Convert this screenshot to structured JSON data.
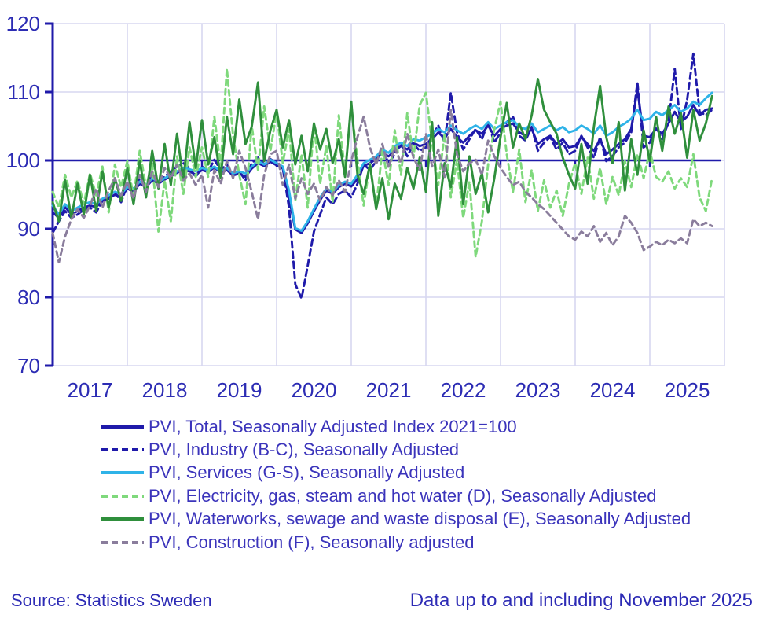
{
  "chart_data": {
    "type": "line",
    "title": "",
    "x_unit": "month",
    "x_start": "2017-01",
    "x_end": "2025-11",
    "x_tick_labels": [
      "2017",
      "2018",
      "2019",
      "2020",
      "2021",
      "2022",
      "2023",
      "2024",
      "2025"
    ],
    "ylim": [
      70,
      120
    ],
    "y_ticks": [
      70,
      80,
      90,
      100,
      110,
      120
    ],
    "grid": true,
    "baseline_value": 100,
    "colors": {
      "axis": "#1f1aaa",
      "gridline": "#d7d7f0",
      "tick_label": "#2c2cb4"
    },
    "series": [
      {
        "id": "pvi-total",
        "name": "PVI, Total, Seasonally Adjusted Index 2021=100",
        "color": "#1f1aaa",
        "dash": "solid",
        "values": [
          92.4,
          91.6,
          93.2,
          92.1,
          92.6,
          93.1,
          93.4,
          93.2,
          94.1,
          94.4,
          95.0,
          94.6,
          95.9,
          95.4,
          96.6,
          96.1,
          97.1,
          96.6,
          97.2,
          97.7,
          98.2,
          98.6,
          98.4,
          97.9,
          98.6,
          98.3,
          99.0,
          98.2,
          98.6,
          97.8,
          98.1,
          97.6,
          98.8,
          99.6,
          99.2,
          99.8,
          99.3,
          98.8,
          94.5,
          89.9,
          89.4,
          90.8,
          92.6,
          94.2,
          95.6,
          95.1,
          96.1,
          96.6,
          96.2,
          97.3,
          99.2,
          99.6,
          100.2,
          101.1,
          100.6,
          101.4,
          102.1,
          101.6,
          102.6,
          102.1,
          102.4,
          103.1,
          104.1,
          103.2,
          104.6,
          103.4,
          102.6,
          103.6,
          104.4,
          103.9,
          105.1,
          103.6,
          104.6,
          105.1,
          105.4,
          104.1,
          103.6,
          104.6,
          102.4,
          103.1,
          103.6,
          102.4,
          103.1,
          101.9,
          102.1,
          103.4,
          102.4,
          101.4,
          103.1,
          100.9,
          101.6,
          102.4,
          103.1,
          104.6,
          110.4,
          103.6,
          103.4,
          104.6,
          103.9,
          105.4,
          107.1,
          105.6,
          106.4,
          108.1,
          106.6,
          107.4,
          107.6
        ]
      },
      {
        "id": "pvi-industry",
        "name": "PVI, Industry (B-C), Seasonally Adjusted",
        "color": "#1f1aaa",
        "dash": "8 5",
        "values": [
          89.4,
          91.1,
          92.6,
          91.6,
          92.1,
          92.8,
          93.1,
          92.4,
          94.1,
          94.6,
          95.4,
          93.9,
          96.4,
          95.1,
          97.4,
          96.4,
          98.1,
          96.9,
          97.6,
          98.4,
          99.1,
          99.6,
          98.9,
          97.6,
          99.1,
          98.4,
          100.1,
          98.6,
          99.4,
          97.9,
          98.4,
          97.1,
          99.6,
          100.4,
          99.4,
          100.2,
          99.6,
          98.9,
          93.1,
          81.9,
          79.8,
          84.6,
          89.6,
          92.1,
          94.6,
          93.6,
          95.1,
          95.6,
          94.6,
          96.6,
          99.4,
          98.6,
          99.9,
          101.6,
          99.6,
          100.9,
          102.6,
          100.6,
          102.4,
          101.4,
          101.9,
          103.6,
          105.1,
          102.6,
          109.9,
          104.1,
          101.6,
          103.1,
          104.6,
          103.1,
          105.6,
          102.6,
          104.1,
          105.6,
          106.4,
          103.6,
          102.9,
          104.9,
          101.4,
          102.6,
          103.4,
          101.6,
          102.6,
          100.9,
          101.4,
          103.6,
          101.9,
          100.4,
          103.4,
          99.9,
          100.6,
          101.9,
          102.6,
          104.1,
          111.4,
          101.9,
          102.6,
          104.9,
          103.1,
          105.6,
          113.4,
          104.6,
          108.9,
          115.6,
          107.1,
          106.6,
          107.4
        ]
      },
      {
        "id": "pvi-services",
        "name": "PVI, Services (G-S), Seasonally Adjusted",
        "color": "#2fb3e8",
        "dash": "solid",
        "values": [
          93.4,
          92.1,
          93.6,
          92.6,
          93.1,
          93.6,
          93.9,
          93.6,
          94.4,
          94.9,
          95.4,
          95.1,
          96.1,
          95.9,
          96.9,
          96.4,
          97.4,
          96.9,
          97.4,
          97.9,
          98.4,
          98.9,
          98.7,
          98.4,
          98.9,
          98.6,
          99.1,
          98.4,
          98.9,
          98.1,
          98.4,
          98.1,
          99.1,
          99.9,
          99.4,
          100.1,
          99.6,
          99.1,
          95.6,
          90.1,
          89.7,
          91.1,
          92.9,
          94.6,
          95.9,
          95.4,
          96.4,
          96.9,
          96.6,
          97.9,
          99.6,
          100.1,
          100.6,
          101.6,
          101.1,
          102.1,
          102.6,
          102.1,
          103.1,
          102.9,
          103.4,
          103.9,
          104.6,
          104.1,
          105.1,
          104.4,
          103.9,
          104.6,
          105.1,
          104.6,
          105.6,
          104.6,
          105.1,
          105.6,
          105.9,
          104.9,
          104.6,
          105.4,
          104.1,
          104.6,
          105.1,
          104.4,
          104.9,
          104.1,
          104.4,
          105.1,
          104.6,
          103.9,
          105.1,
          103.6,
          104.1,
          104.9,
          105.4,
          106.1,
          107.4,
          105.9,
          106.1,
          107.1,
          106.6,
          107.4,
          108.1,
          107.1,
          107.6,
          108.6,
          108.1,
          109.1,
          109.9
        ]
      },
      {
        "id": "pvi-electricity",
        "name": "PVI, Electricity, gas, steam and hot water (D), Seasonally Adjusted",
        "color": "#7fd97c",
        "dash": "7 5",
        "values": [
          95.4,
          93.1,
          97.9,
          94.6,
          97.1,
          93.6,
          98.1,
          94.9,
          99.1,
          92.4,
          99.4,
          96.1,
          99.9,
          94.6,
          101.4,
          96.1,
          99.6,
          89.6,
          97.1,
          91.1,
          100.6,
          95.1,
          101.9,
          97.6,
          101.9,
          97.6,
          106.4,
          99.1,
          113.4,
          103.6,
          97.9,
          93.6,
          105.1,
          98.6,
          107.9,
          101.4,
          107.1,
          99.6,
          104.6,
          94.1,
          100.9,
          93.1,
          105.4,
          96.6,
          102.1,
          93.9,
          106.6,
          98.1,
          107.9,
          100.1,
          93.4,
          99.6,
          93.1,
          101.6,
          96.4,
          104.4,
          97.9,
          106.9,
          100.4,
          108.1,
          109.9,
          102.6,
          96.4,
          103.9,
          94.6,
          100.1,
          91.6,
          96.9,
          85.9,
          91.1,
          99.4,
          104.6,
          108.6,
          100.9,
          95.4,
          101.6,
          93.9,
          98.6,
          92.6,
          97.1,
          93.1,
          95.6,
          91.9,
          96.6,
          99.6,
          95.1,
          100.4,
          94.4,
          98.9,
          93.6,
          97.6,
          94.9,
          99.9,
          96.1,
          100.9,
          97.4,
          101.4,
          97.6,
          96.9,
          98.4,
          95.9,
          97.4,
          96.1,
          100.9,
          94.6,
          92.6,
          97.4
        ]
      },
      {
        "id": "pvi-waterworks",
        "name": "PVI, Waterworks, sewage and waste disposal (E), Seasonally Adjusted",
        "color": "#2f8f3c",
        "dash": "solid",
        "values": [
          93.9,
          91.1,
          97.1,
          91.6,
          96.6,
          92.1,
          97.9,
          92.6,
          98.4,
          93.1,
          97.4,
          94.1,
          98.9,
          93.6,
          99.9,
          94.6,
          101.4,
          95.9,
          102.4,
          96.4,
          103.9,
          97.1,
          105.6,
          98.9,
          105.9,
          99.4,
          103.4,
          97.4,
          106.4,
          100.9,
          108.9,
          102.4,
          104.9,
          111.4,
          99.9,
          104.4,
          107.4,
          101.9,
          105.9,
          99.4,
          103.6,
          98.4,
          105.4,
          101.6,
          104.6,
          99.6,
          103.1,
          97.6,
          108.6,
          97.9,
          95.1,
          99.4,
          92.9,
          97.4,
          91.4,
          96.6,
          94.4,
          98.9,
          95.9,
          100.4,
          95.4,
          105.6,
          91.9,
          99.6,
          96.1,
          103.4,
          93.6,
          100.6,
          95.1,
          98.1,
          92.4,
          97.4,
          103.4,
          108.4,
          101.9,
          105.4,
          103.1,
          106.6,
          111.9,
          107.4,
          105.6,
          103.9,
          100.4,
          97.9,
          95.9,
          102.4,
          96.6,
          104.9,
          110.9,
          103.4,
          99.6,
          105.6,
          95.6,
          103.1,
          97.9,
          104.4,
          99.9,
          106.4,
          101.4,
          107.9,
          103.9,
          106.9,
          100.4,
          107.4,
          102.9,
          105.4,
          109.4
        ]
      },
      {
        "id": "pvi-construction",
        "name": "PVI, Construction (F), Seasonally adjusted",
        "color": "#8a7d9c",
        "dash": "7 5",
        "values": [
          89.4,
          85.1,
          88.9,
          91.4,
          92.9,
          91.6,
          93.4,
          95.9,
          93.1,
          95.6,
          97.4,
          94.9,
          96.9,
          94.4,
          97.9,
          95.4,
          98.4,
          96.1,
          98.9,
          97.4,
          99.4,
          97.1,
          98.1,
          96.4,
          97.9,
          93.1,
          98.6,
          96.6,
          99.9,
          97.4,
          101.4,
          98.9,
          95.4,
          91.4,
          97.9,
          100.9,
          101.4,
          96.4,
          99.4,
          94.4,
          97.4,
          95.1,
          96.6,
          94.1,
          96.1,
          94.9,
          97.1,
          95.4,
          99.9,
          103.4,
          106.4,
          101.9,
          99.4,
          102.4,
          98.9,
          101.9,
          99.6,
          103.9,
          100.4,
          98.6,
          103.9,
          99.1,
          101.6,
          97.6,
          107.4,
          100.9,
          98.4,
          99.6,
          100.1,
          97.9,
          102.9,
          100.6,
          98.9,
          97.6,
          96.4,
          96.9,
          95.4,
          94.6,
          93.6,
          92.9,
          91.9,
          90.9,
          89.9,
          88.9,
          88.4,
          89.6,
          88.9,
          90.4,
          88.1,
          89.4,
          87.6,
          88.9,
          91.9,
          90.9,
          89.4,
          86.9,
          87.4,
          88.1,
          87.6,
          88.4,
          87.9,
          88.6,
          87.9,
          91.4,
          90.4,
          90.9,
          90.4
        ]
      }
    ]
  },
  "footer": {
    "source": "Source: Statistics Sweden",
    "coverage": "Data up to and including November 2025"
  }
}
